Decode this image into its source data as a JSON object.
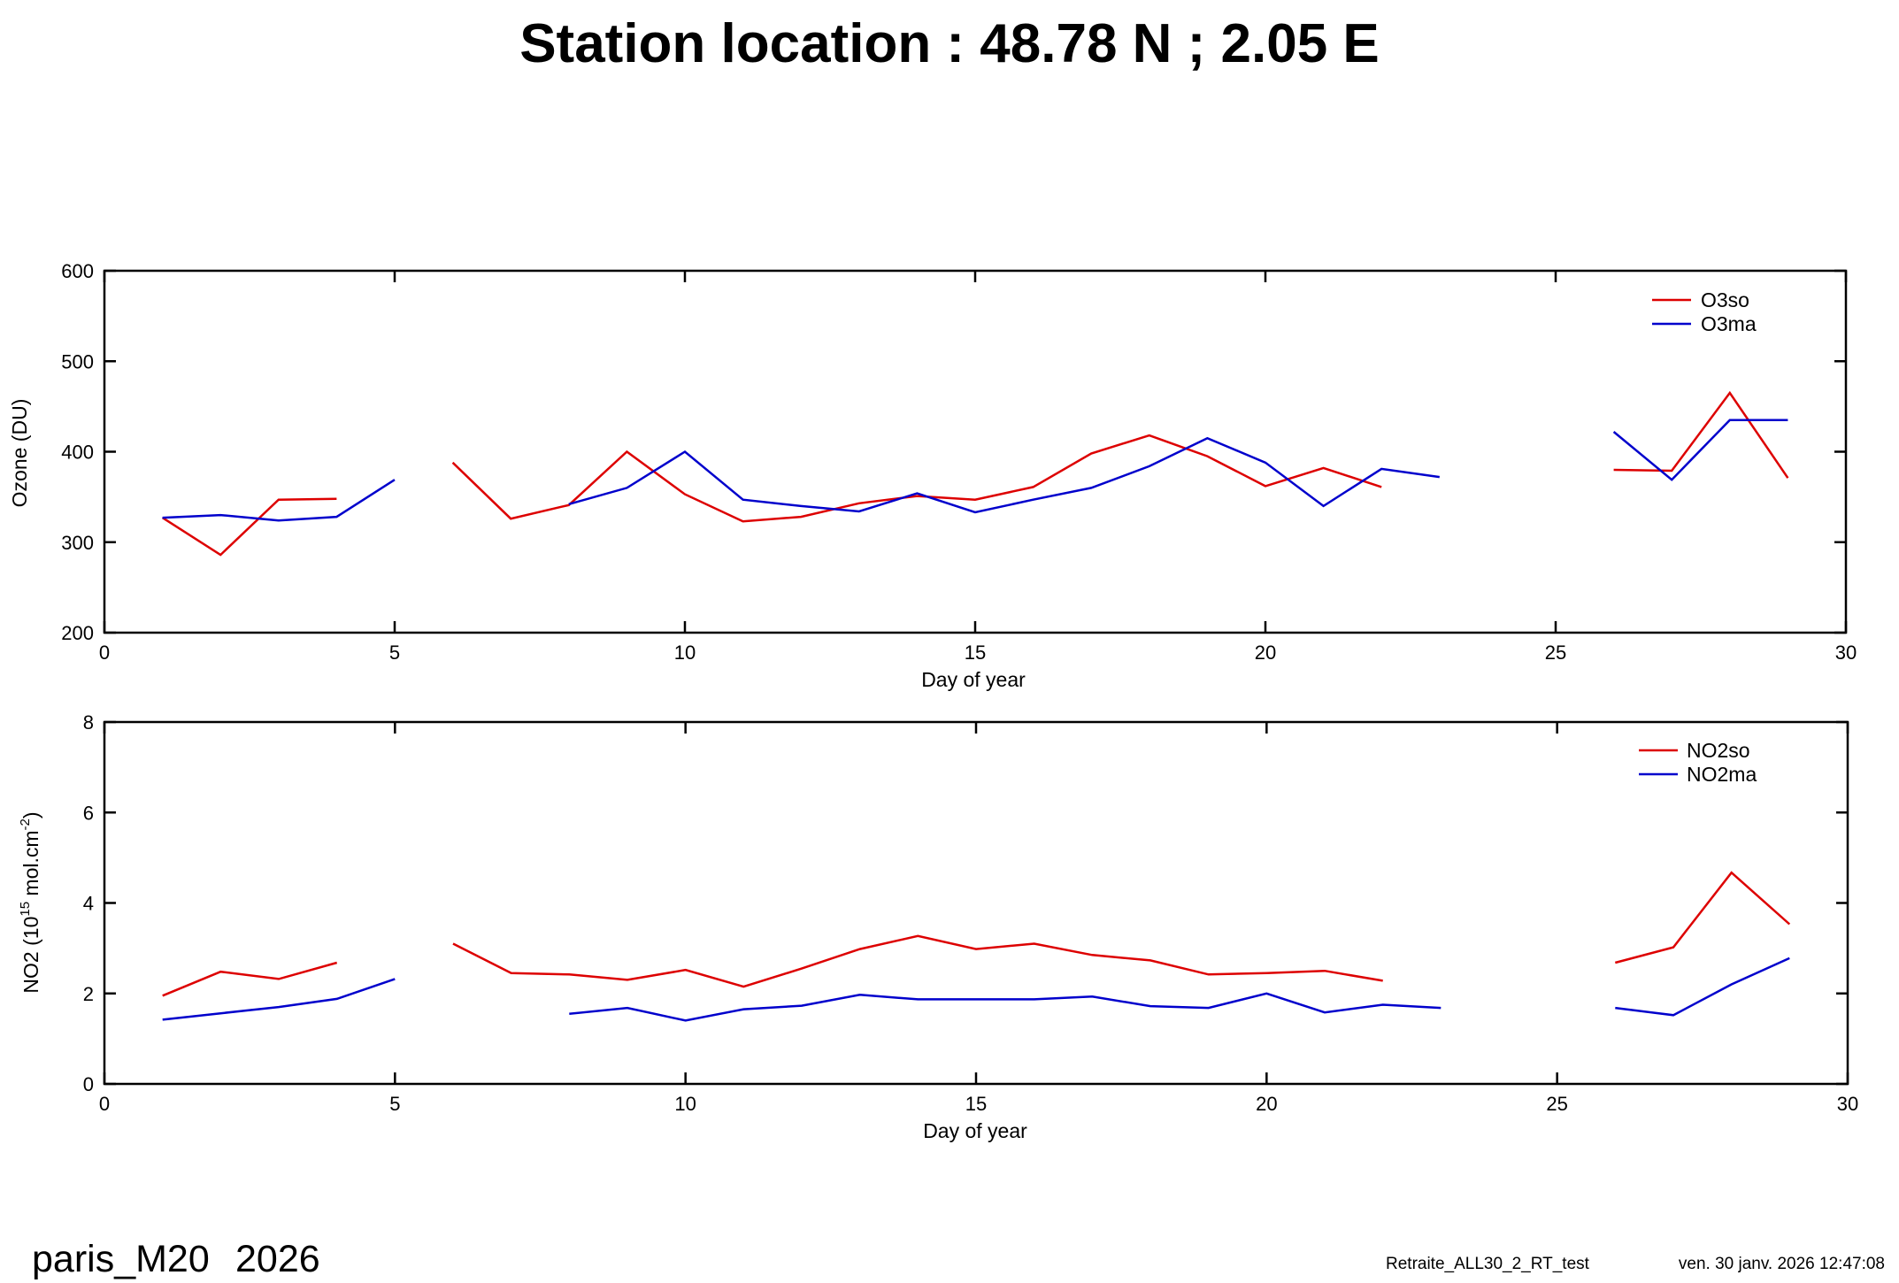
{
  "title": "Station location : 48.78 N ; 2.05 E",
  "footer": {
    "station": "paris_M20",
    "year": "2026",
    "processing": "Retraite_ALL30_2_RT_test",
    "timestamp": "ven. 30 janv. 2026 12:47:08"
  },
  "chart_data": [
    {
      "type": "line",
      "xlabel": "Day of year",
      "ylabel": "Ozone (DU)",
      "xlim": [
        0,
        30
      ],
      "ylim": [
        200,
        600
      ],
      "xticks": [
        0,
        5,
        10,
        15,
        20,
        25,
        30
      ],
      "yticks": [
        200,
        300,
        400,
        500,
        600
      ],
      "grid": false,
      "legend_position": "top-right",
      "series": [
        {
          "name": "O3so",
          "color": "#dd0000",
          "x": [
            1,
            2,
            3,
            4,
            null,
            6,
            7,
            8,
            9,
            10,
            11,
            12,
            13,
            14,
            15,
            16,
            17,
            18,
            19,
            20,
            21,
            22,
            null,
            26,
            27,
            28,
            29
          ],
          "y": [
            327,
            286,
            347,
            348,
            null,
            388,
            326,
            341,
            400,
            353,
            323,
            328,
            343,
            351,
            347,
            361,
            398,
            418,
            395,
            362,
            382,
            361,
            null,
            380,
            379,
            465,
            371
          ]
        },
        {
          "name": "O3ma",
          "color": "#0000cc",
          "x": [
            1,
            2,
            3,
            4,
            5,
            null,
            8,
            9,
            10,
            11,
            12,
            13,
            14,
            15,
            16,
            17,
            18,
            19,
            20,
            21,
            22,
            23,
            null,
            26,
            27,
            28,
            29
          ],
          "y": [
            327,
            330,
            324,
            328,
            369,
            null,
            342,
            360,
            400,
            347,
            340,
            334,
            354,
            333,
            347,
            360,
            384,
            415,
            388,
            340,
            381,
            372,
            null,
            422,
            369,
            435,
            435
          ]
        }
      ]
    },
    {
      "type": "line",
      "xlabel": "Day of year",
      "ylabel": {
        "prefix": "NO2 (10",
        "exponent": "15",
        "middle": " mol.cm",
        "unit_exponent": "-2",
        "suffix": ")"
      },
      "xlim": [
        0,
        30
      ],
      "ylim": [
        0,
        8
      ],
      "xticks": [
        0,
        5,
        10,
        15,
        20,
        25,
        30
      ],
      "yticks": [
        0,
        2,
        4,
        6,
        8
      ],
      "grid": false,
      "legend_position": "top-right",
      "series": [
        {
          "name": "NO2so",
          "color": "#dd0000",
          "x": [
            1,
            2,
            3,
            4,
            null,
            6,
            7,
            8,
            9,
            10,
            11,
            12,
            13,
            14,
            15,
            16,
            17,
            18,
            19,
            20,
            21,
            22,
            null,
            26,
            27,
            28,
            29
          ],
          "y": [
            1.95,
            2.48,
            2.32,
            2.68,
            null,
            3.1,
            2.45,
            2.42,
            2.3,
            2.52,
            2.15,
            2.55,
            2.98,
            3.27,
            2.98,
            3.1,
            2.85,
            2.73,
            2.42,
            2.45,
            2.5,
            2.28,
            null,
            2.68,
            3.02,
            4.67,
            3.53
          ]
        },
        {
          "name": "NO2ma",
          "color": "#0000cc",
          "x": [
            1,
            2,
            3,
            4,
            5,
            null,
            8,
            9,
            10,
            11,
            12,
            13,
            14,
            15,
            16,
            17,
            18,
            19,
            20,
            21,
            22,
            23,
            null,
            26,
            27,
            28,
            29
          ],
          "y": [
            1.42,
            1.56,
            1.7,
            1.88,
            2.32,
            null,
            1.55,
            1.68,
            1.4,
            1.65,
            1.73,
            1.97,
            1.87,
            1.87,
            1.87,
            1.93,
            1.72,
            1.68,
            2.0,
            1.58,
            1.75,
            1.68,
            null,
            1.68,
            1.52,
            2.2,
            2.78
          ]
        }
      ]
    }
  ]
}
